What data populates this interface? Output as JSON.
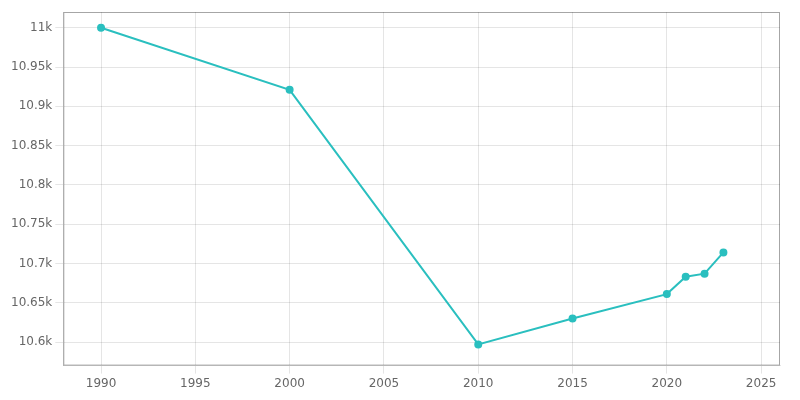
{
  "chart_data": {
    "type": "line",
    "x": [
      1990,
      2000,
      2010,
      2015,
      2020,
      2021,
      2022,
      2023
    ],
    "values": [
      11000,
      10921,
      10597,
      10630,
      10661,
      10683,
      10687,
      10714
    ],
    "color": "#2abfbf",
    "marker": "circle",
    "xlim": [
      1988,
      2026
    ],
    "ylim": [
      10570,
      11020
    ],
    "xticks": [
      1990,
      1995,
      2000,
      2005,
      2010,
      2015,
      2020,
      2025
    ],
    "yticks": [
      {
        "value": 10600,
        "label": "10.6k"
      },
      {
        "value": 10650,
        "label": "10.65k"
      },
      {
        "value": 10700,
        "label": "10.7k"
      },
      {
        "value": 10750,
        "label": "10.75k"
      },
      {
        "value": 10800,
        "label": "10.8k"
      },
      {
        "value": 10850,
        "label": "10.85k"
      },
      {
        "value": 10900,
        "label": "10.9k"
      },
      {
        "value": 10950,
        "label": "10.95k"
      },
      {
        "value": 11000,
        "label": "11k"
      }
    ],
    "grid": true
  }
}
